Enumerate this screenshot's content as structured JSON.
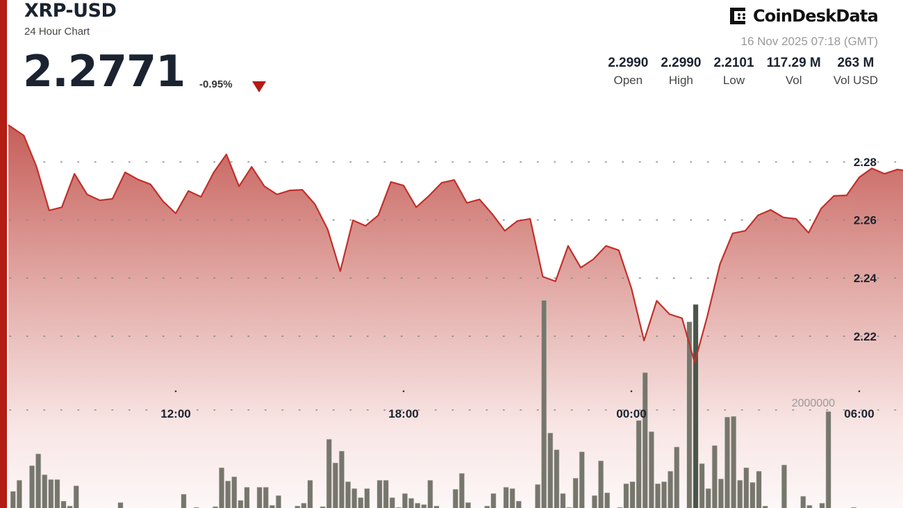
{
  "header": {
    "symbol": "XRP-USD",
    "subtitle": "24 Hour Chart",
    "price": "2.2771",
    "change": "-0.95%",
    "change_direction": "down",
    "brand": "CoinDesk Data",
    "brand_text": "CoinDeskData",
    "timestamp": "16 Nov 2025 07:18 (GMT)"
  },
  "stats": [
    {
      "value": "2.2990",
      "label": "Open"
    },
    {
      "value": "2.2990",
      "label": "High"
    },
    {
      "value": "2.2101",
      "label": "Low"
    },
    {
      "value": "117.29 M",
      "label": "Vol"
    },
    {
      "value": "263 M",
      "label": "Vol USD"
    }
  ],
  "colors": {
    "accent": "#b21d14",
    "line": "#c0302a",
    "volume": "#77766d",
    "text": "#1b2330"
  },
  "chart_data": {
    "type": "area",
    "grid": true,
    "y_ticks": [
      "2.28",
      "2.26",
      "2.24",
      "2.22"
    ],
    "x_ticks": [
      "12:00",
      "18:00",
      "00:00",
      "06:00"
    ],
    "volume_tick": "2000000",
    "series": {
      "times": [
        "07:40",
        "08:00",
        "08:20",
        "08:40",
        "09:00",
        "09:20",
        "09:40",
        "10:00",
        "10:20",
        "10:40",
        "11:00",
        "11:20",
        "11:40",
        "12:00",
        "12:20",
        "12:40",
        "13:00",
        "13:20",
        "13:40",
        "14:00",
        "14:20",
        "14:40",
        "15:00",
        "15:20",
        "15:40",
        "16:00",
        "16:20",
        "16:40",
        "17:00",
        "17:20",
        "17:40",
        "18:00",
        "18:20",
        "18:40",
        "19:00",
        "19:20",
        "19:40",
        "20:00",
        "20:20",
        "20:40",
        "21:00",
        "21:20",
        "21:40",
        "22:00",
        "22:20",
        "22:40",
        "23:00",
        "23:20",
        "23:40",
        "00:00",
        "00:20",
        "00:40",
        "01:00",
        "01:20",
        "01:40",
        "02:00",
        "02:20",
        "02:40",
        "03:00",
        "03:20",
        "03:40",
        "04:00",
        "04:20",
        "04:40",
        "05:00",
        "05:20",
        "05:40",
        "06:00",
        "06:20",
        "06:40",
        "07:00",
        "07:18"
      ],
      "prices": [
        2.2927,
        2.2891,
        2.2783,
        2.2633,
        2.2644,
        2.2759,
        2.2688,
        2.2668,
        2.2673,
        2.2764,
        2.274,
        2.2723,
        2.2664,
        2.2623,
        2.27,
        2.268,
        2.2764,
        2.2826,
        2.2716,
        2.2783,
        2.2716,
        2.2688,
        2.2702,
        2.2704,
        2.2654,
        2.2568,
        2.2424,
        2.2599,
        2.258,
        2.2616,
        2.2731,
        2.2719,
        2.2644,
        2.2683,
        2.2728,
        2.2738,
        2.2659,
        2.2671,
        2.2621,
        2.2563,
        2.2597,
        2.2604,
        2.2405,
        2.2389,
        2.2511,
        2.2436,
        2.2465,
        2.2511,
        2.2496,
        2.2365,
        2.2185,
        2.2322,
        2.2276,
        2.2262,
        2.2109,
        2.2269,
        2.2448,
        2.2554,
        2.2563,
        2.2616,
        2.2635,
        2.2609,
        2.2604,
        2.2556,
        2.264,
        2.2683,
        2.2685,
        2.2747,
        2.2778,
        2.2759,
        2.2774,
        2.2771
      ]
    },
    "volume": [
      624000,
      812000,
      0,
      1059000,
      1259000,
      906000,
      824000,
      824000,
      459000,
      376000,
      718000,
      0,
      0,
      0,
      0,
      0,
      0,
      435000,
      0,
      0,
      0,
      0,
      0,
      0,
      0,
      0,
      0,
      576000,
      0,
      353000,
      0,
      0,
      365000,
      1024000,
      800000,
      871000,
      471000,
      694000,
      0,
      694000,
      694000,
      388000,
      553000,
      0,
      0,
      376000,
      424000,
      812000,
      0,
      365000,
      1506000,
      1106000,
      1306000,
      788000,
      671000,
      518000,
      671000,
      0,
      812000,
      812000,
      518000,
      353000,
      588000,
      506000,
      424000,
      400000,
      812000,
      376000,
      0,
      0,
      659000,
      929000,
      435000,
      0,
      0,
      376000,
      588000,
      0,
      694000,
      671000,
      459000,
      0,
      0,
      741000,
      3859000,
      1612000,
      1329000,
      588000,
      353000,
      847000,
      1294000,
      0,
      553000,
      1141000,
      600000,
      0,
      353000,
      753000,
      788000,
      1824000,
      2635000,
      1635000,
      753000,
      788000,
      965000,
      1376000,
      0,
      3494000,
      3788000,
      1094000,
      671000,
      1400000,
      835000,
      1882000,
      1894000,
      812000,
      1024000,
      776000,
      965000,
      376000,
      0,
      0,
      1071000,
      0,
      0,
      541000,
      388000,
      0,
      424000,
      1976000,
      0,
      0,
      0,
      353000,
      0,
      0,
      0,
      0,
      0,
      0,
      0
    ]
  }
}
